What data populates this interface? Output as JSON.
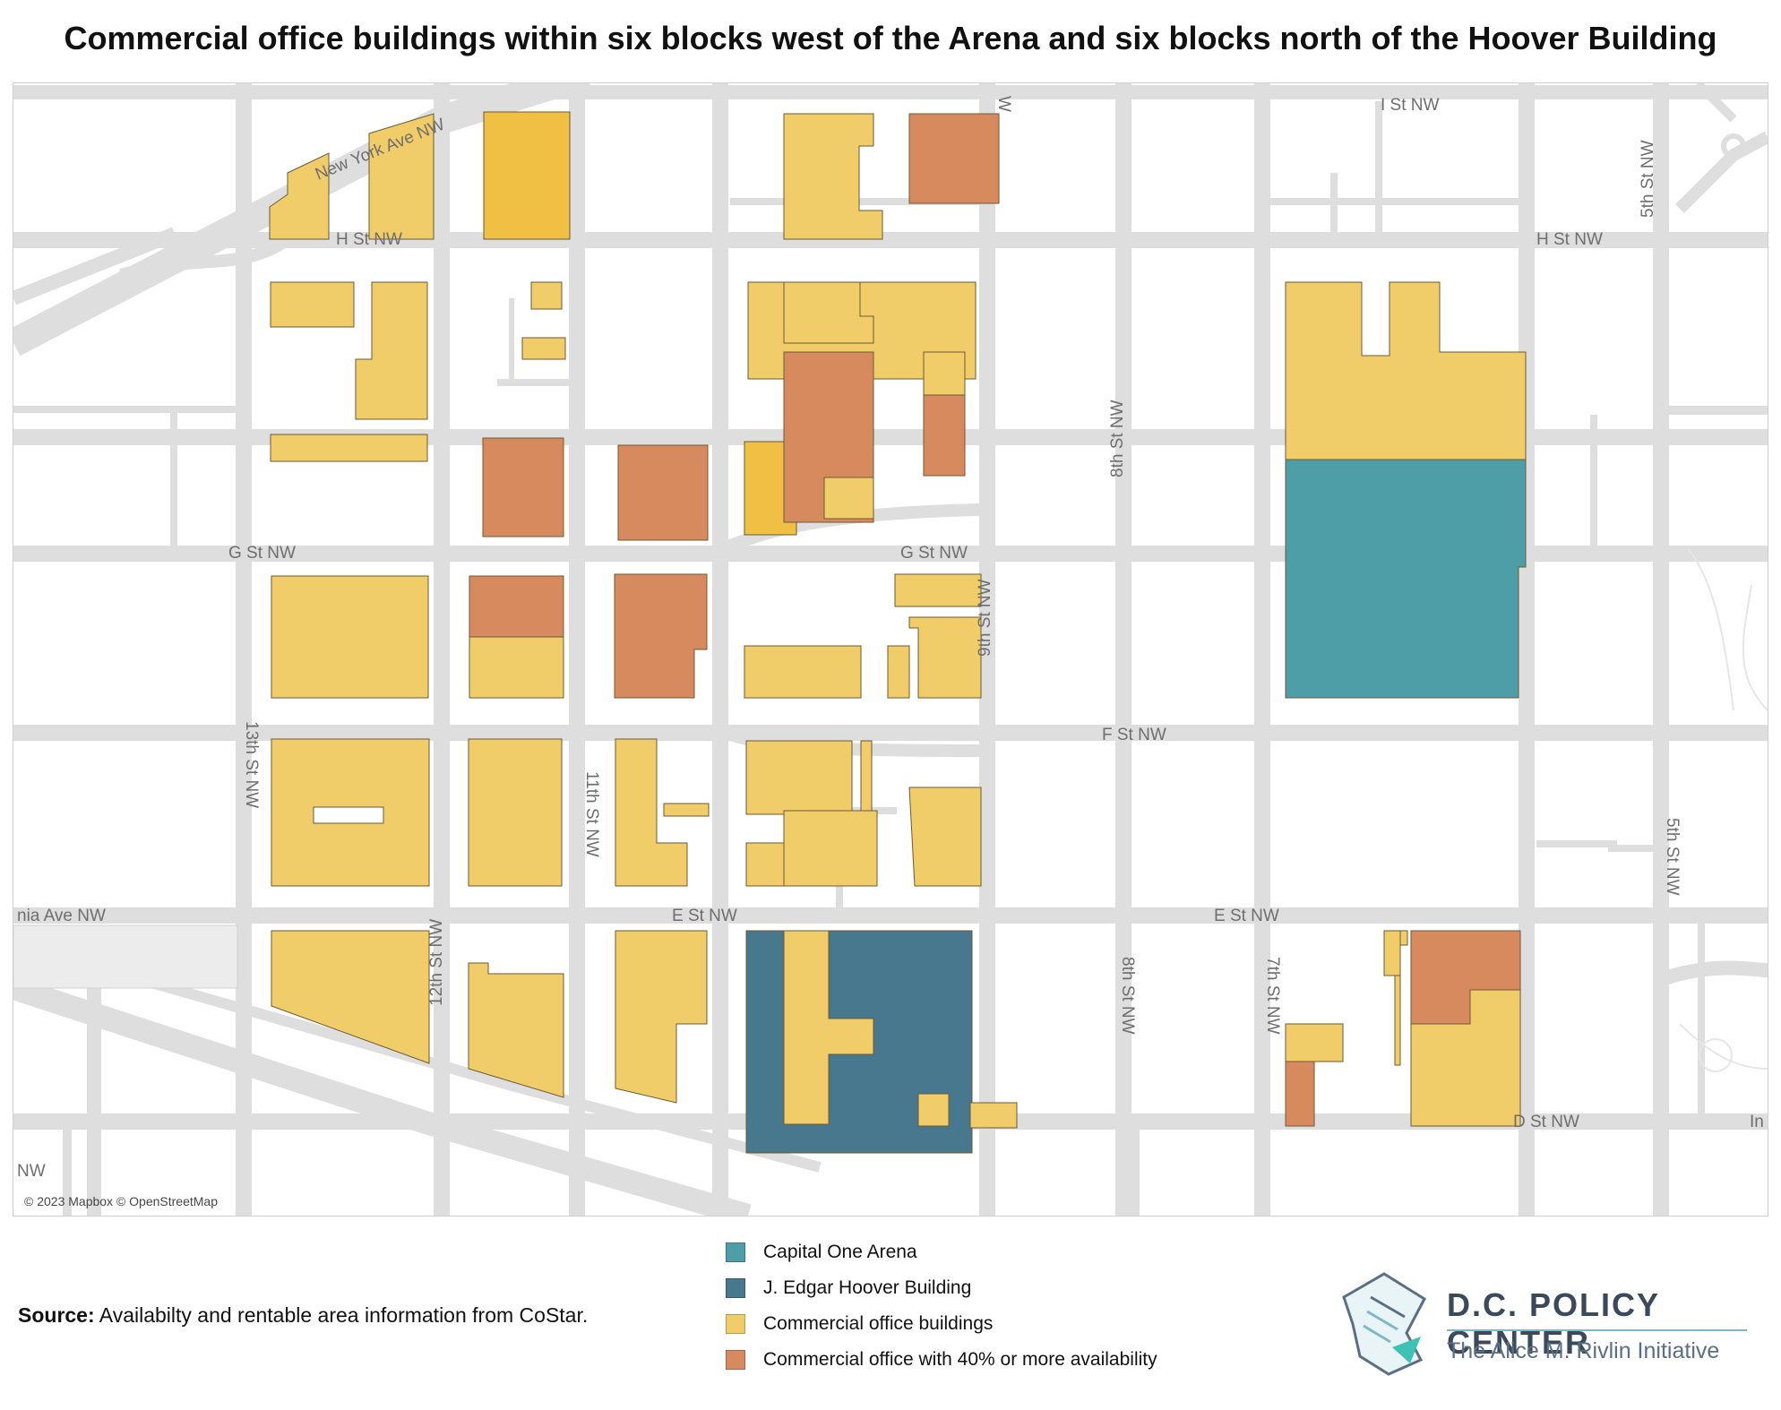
{
  "title": "Commercial office buildings within six blocks west of the Arena and six blocks north of the Hoover Building",
  "colors": {
    "arena": "#4e9ea8",
    "hoover": "#47788e",
    "office": "#f1cd6a",
    "office_dark": "#efc044",
    "office_high_availability": "#d88a5f",
    "road": "#dedede",
    "building_border": "#6b5a35"
  },
  "street_labels": {
    "new_york_ave": "New York Ave NW",
    "i_st": "I St NW",
    "fifth_st_top": "5th St NW",
    "fifth_st_mid": "5th St NW",
    "h_st_left": "H St NW",
    "h_st_right": "H St NW",
    "g_st_left": "G St NW",
    "g_st_mid": "G St NW",
    "ninth_st": "9th St NW",
    "eighth_st_top": "8th St NW",
    "eighth_st_bottom": "8th St NW",
    "f_st": "F St NW",
    "thirteenth_st": "13th St NW",
    "eleventh_st": "11th St NW",
    "twelfth_st": "12th St NW",
    "penn_ave": "nia Ave NW",
    "e_st_mid": "E St NW",
    "e_st_right": "E St NW",
    "seventh_st": "7th St NW",
    "d_st": "D St NW",
    "nw_bottom": "NW",
    "top_cut": "W",
    "right_cut": "In"
  },
  "attribution": "© 2023 Mapbox © OpenStreetMap",
  "source": {
    "label": "Source:",
    "text": "Availabilty and rentable area information from CoStar."
  },
  "legend": [
    {
      "label": "Capital One Arena",
      "color": "#4e9ea8"
    },
    {
      "label": "J. Edgar Hoover Building",
      "color": "#47788e"
    },
    {
      "label": "Commercial office buildings",
      "color": "#f1cd6a"
    },
    {
      "label": "Commercial office with 40% or more availability",
      "color": "#d88a5f"
    }
  ],
  "logo": {
    "name": "D.C. POLICY CENTER",
    "subtitle": "The Alice M. Rivlin Initiative"
  }
}
